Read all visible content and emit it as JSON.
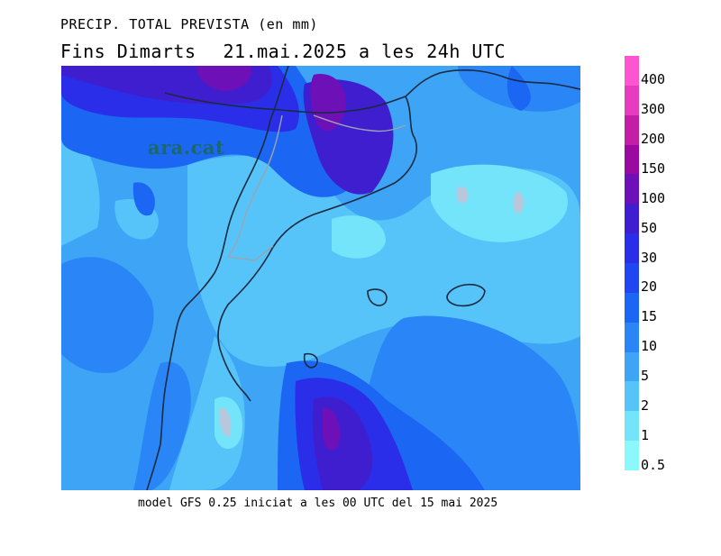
{
  "title": {
    "line1": "PRECIP. TOTAL PREVISTA (en mm)",
    "line2_left": "Fins Dimarts",
    "line2_right": "21.mai.2025 a les 24h UTC"
  },
  "watermark": "ara.cat",
  "footer": "model GFS 0.25 iniciat a les 00 UTC del 15 mai 2025",
  "legend": {
    "levels": [
      {
        "label": "400",
        "color": "#ff55d0"
      },
      {
        "label": "300",
        "color": "#e63cc0"
      },
      {
        "label": "200",
        "color": "#c51ea6"
      },
      {
        "label": "150",
        "color": "#9b0aa0"
      },
      {
        "label": "100",
        "color": "#6e10b8"
      },
      {
        "label": "50",
        "color": "#3f1ed0"
      },
      {
        "label": "30",
        "color": "#2a2ee8"
      },
      {
        "label": "20",
        "color": "#1f46f0"
      },
      {
        "label": "15",
        "color": "#1c66f4"
      },
      {
        "label": "10",
        "color": "#2a86f6"
      },
      {
        "label": "5",
        "color": "#3ea4f6"
      },
      {
        "label": "2",
        "color": "#56c4f8"
      },
      {
        "label": "1",
        "color": "#74e4fa"
      },
      {
        "label": "0.5",
        "color": "#8af8fc"
      }
    ]
  }
}
